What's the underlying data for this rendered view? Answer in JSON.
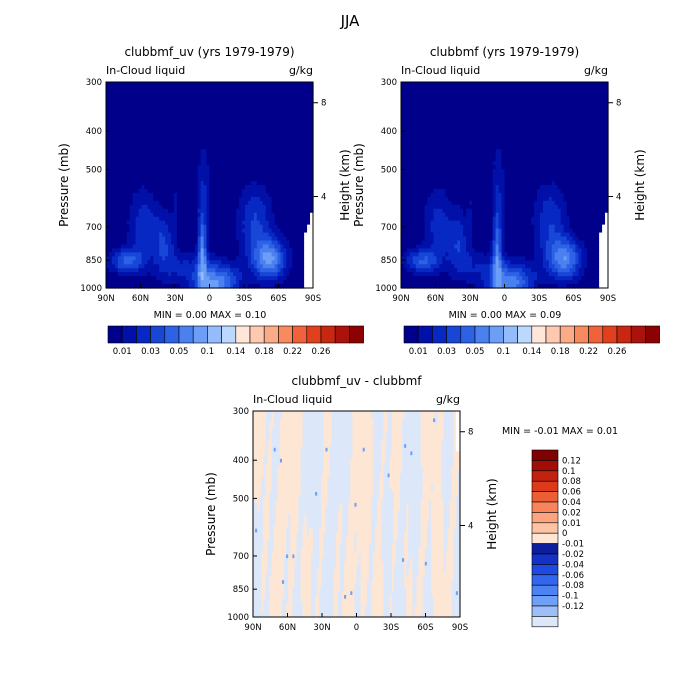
{
  "figure_title": "JJA",
  "colors": {
    "blue_scale": [
      "#00008b",
      "#0010a8",
      "#0828c4",
      "#1846d6",
      "#2e62e6",
      "#4a80f0",
      "#6c9ef5",
      "#94bcfa",
      "#bdd8fd",
      "#e0edff"
    ],
    "red_scale": [
      "#ffe6d8",
      "#fdc9b0",
      "#fbab88",
      "#f88a60",
      "#f0623c",
      "#e0401c",
      "#c82812",
      "#ac120c",
      "#8c0204"
    ],
    "diff_neg": [
      "#0c1e9c",
      "#1432c8",
      "#1e4ae0",
      "#3266ec",
      "#4c82f2",
      "#6ea0f7",
      "#9cbef9",
      "#dce8fa"
    ],
    "diff_pos": [
      "#fde6d4",
      "#fcc4a4",
      "#fba47e",
      "#f7845a",
      "#ee5e34",
      "#dc3a1a",
      "#c22210",
      "#a00e06",
      "#7e0202"
    ]
  },
  "chart_data": [
    {
      "type": "heatmap",
      "title": "clubbmf_uv (yrs 1979-1979)",
      "left_string": "In-Cloud liquid",
      "right_string": "g/kg",
      "xlabel": "",
      "ylabel": "Pressure (mb)",
      "ylabel_right": "Height (km)",
      "xticks": [
        "90N",
        "60N",
        "30N",
        "0",
        "30S",
        "60S",
        "90S"
      ],
      "xlim": [
        90,
        -90
      ],
      "yticks": [
        "300",
        "400",
        "500",
        "700",
        "850",
        "1000"
      ],
      "ylim": [
        1000,
        300
      ],
      "right_ticks": [
        "8",
        "4"
      ],
      "stats": "MIN =    0.00   MAX =    0.10",
      "colorbar_labels": [
        "0.01",
        "0.03",
        "0.05",
        "0.1",
        "0.14",
        "0.18",
        "0.22",
        "0.26"
      ],
      "levels": [
        0.01,
        0.02,
        0.03,
        0.04,
        0.05,
        0.06,
        0.08,
        0.1,
        0.12,
        0.14,
        0.16,
        0.18,
        0.2,
        0.22,
        0.24,
        0.26
      ]
    },
    {
      "type": "heatmap",
      "title": "clubbmf (yrs 1979-1979)",
      "left_string": "In-Cloud liquid",
      "right_string": "g/kg",
      "xlabel": "",
      "ylabel": "Pressure (mb)",
      "ylabel_right": "Height (km)",
      "xticks": [
        "90N",
        "60N",
        "30N",
        "0",
        "30S",
        "60S",
        "90S"
      ],
      "xlim": [
        90,
        -90
      ],
      "yticks": [
        "300",
        "400",
        "500",
        "700",
        "850",
        "1000"
      ],
      "ylim": [
        1000,
        300
      ],
      "right_ticks": [
        "8",
        "4"
      ],
      "stats": "MIN =    0.00   MAX =    0.09",
      "colorbar_labels": [
        "0.01",
        "0.03",
        "0.05",
        "0.1",
        "0.14",
        "0.18",
        "0.22",
        "0.26"
      ],
      "levels": [
        0.01,
        0.02,
        0.03,
        0.04,
        0.05,
        0.06,
        0.08,
        0.1,
        0.12,
        0.14,
        0.16,
        0.18,
        0.2,
        0.22,
        0.24,
        0.26
      ]
    },
    {
      "type": "heatmap",
      "title": "clubbmf_uv - clubbmf",
      "left_string": "In-Cloud liquid",
      "right_string": "g/kg",
      "xlabel": "",
      "ylabel": "Pressure (mb)",
      "ylabel_right": "Height (km)",
      "xticks": [
        "90N",
        "60N",
        "30N",
        "0",
        "30S",
        "60S",
        "90S"
      ],
      "xlim": [
        90,
        -90
      ],
      "yticks": [
        "300",
        "400",
        "500",
        "700",
        "850",
        "1000"
      ],
      "ylim": [
        1000,
        300
      ],
      "right_ticks": [
        "8",
        "4"
      ],
      "stats": "MIN =    -0.01   MAX =    0.01",
      "colorbar_labels": [
        "0.12",
        "0.1",
        "0.08",
        "0.06",
        "0.04",
        "0.02",
        "0.01",
        "0",
        "-0.01",
        "-0.02",
        "-0.04",
        "-0.06",
        "-0.08",
        "-0.1",
        "-0.12"
      ],
      "levels": [
        -0.12,
        -0.1,
        -0.08,
        -0.06,
        -0.04,
        -0.02,
        -0.01,
        0,
        0.01,
        0.02,
        0.04,
        0.06,
        0.08,
        0.1,
        0.12
      ]
    }
  ]
}
